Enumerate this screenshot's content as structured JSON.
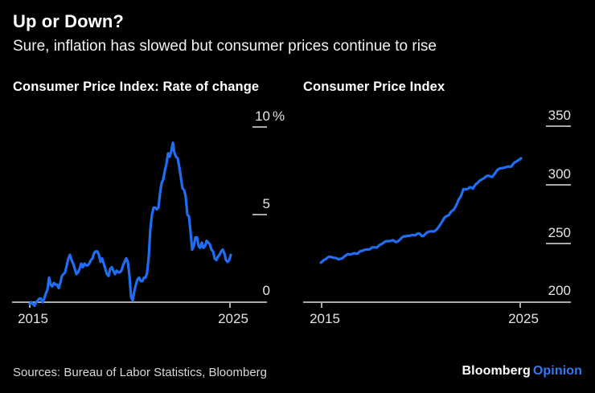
{
  "header": {
    "title": "Up or Down?",
    "subtitle": "Sure, inflation has slowed but consumer prices continue to rise"
  },
  "footer": {
    "sources": "Sources: Bureau of Labor Statistics, Bloomberg",
    "brand": "Bloomberg",
    "brand_suffix": "Opinion"
  },
  "colors": {
    "background": "#000000",
    "line": "#1f6df2",
    "axis": "#a9a9a9",
    "tick_label": "#e3e3e3",
    "title_text": "#ffffff",
    "sources_text": "#d9d9d9",
    "brand_blue": "#3579f3"
  },
  "chart_data": [
    {
      "type": "line",
      "title": "Consumer Price Index: Rate of change",
      "unit": "%",
      "x_monthly": {
        "start": "2015-01",
        "end": "2025-06"
      },
      "x_tick_labels": [
        "2015",
        "2025"
      ],
      "ylim": [
        0,
        10
      ],
      "yticks": [
        0,
        5,
        10
      ],
      "ytick_labels": [
        "0",
        "5",
        "10%"
      ],
      "grid": "right-dashes",
      "legend": "none",
      "line_color": "#1f6df2",
      "values": [
        -0.1,
        0.0,
        -0.1,
        -0.2,
        0.0,
        0.1,
        0.2,
        0.2,
        0.0,
        0.2,
        0.5,
        0.7,
        1.4,
        1.0,
        0.9,
        1.1,
        1.0,
        1.0,
        0.8,
        1.1,
        1.5,
        1.6,
        1.7,
        2.1,
        2.5,
        2.7,
        2.4,
        2.2,
        1.9,
        1.6,
        1.7,
        1.9,
        2.2,
        2.0,
        2.2,
        2.1,
        2.1,
        2.2,
        2.4,
        2.5,
        2.8,
        2.9,
        2.9,
        2.7,
        2.3,
        2.5,
        2.2,
        1.9,
        1.6,
        1.5,
        1.9,
        2.0,
        1.8,
        1.6,
        1.8,
        1.7,
        1.7,
        1.8,
        2.1,
        2.3,
        2.5,
        2.3,
        1.5,
        0.3,
        0.1,
        0.6,
        1.0,
        1.3,
        1.4,
        1.2,
        1.2,
        1.4,
        1.4,
        1.7,
        2.6,
        4.2,
        5.0,
        5.4,
        5.4,
        5.3,
        5.4,
        6.2,
        6.8,
        7.0,
        7.5,
        7.9,
        8.5,
        8.3,
        8.6,
        9.1,
        8.5,
        8.3,
        8.2,
        7.7,
        7.1,
        6.5,
        6.4,
        6.0,
        5.0,
        4.9,
        4.0,
        3.0,
        3.2,
        3.7,
        3.7,
        3.2,
        3.1,
        3.4,
        3.1,
        3.2,
        3.5,
        3.4,
        3.3,
        3.0,
        2.9,
        2.5,
        2.4,
        2.6,
        2.7,
        2.9,
        3.0,
        2.8,
        2.4,
        2.3,
        2.4,
        2.7
      ]
    },
    {
      "type": "line",
      "title": "Consumer Price Index",
      "unit": "index",
      "x_monthly": {
        "start": "2015-01",
        "end": "2025-06"
      },
      "x_tick_labels": [
        "2015",
        "2025"
      ],
      "ylim": [
        200,
        350
      ],
      "yticks": [
        200,
        250,
        300,
        350
      ],
      "ytick_labels": [
        "200",
        "250",
        "300",
        "350"
      ],
      "grid": "right-dashes",
      "legend": "none",
      "line_color": "#1f6df2",
      "values": [
        233.7,
        234.7,
        236.1,
        236.6,
        237.8,
        238.6,
        238.7,
        238.3,
        237.9,
        237.8,
        237.3,
        236.5,
        236.9,
        237.1,
        238.1,
        239.3,
        240.2,
        241.0,
        240.6,
        240.8,
        241.4,
        241.7,
        241.4,
        241.4,
        242.8,
        243.6,
        243.8,
        244.5,
        244.7,
        245.0,
        244.8,
        245.5,
        246.8,
        246.7,
        246.7,
        246.5,
        247.9,
        249.0,
        249.6,
        250.5,
        251.6,
        252.0,
        252.0,
        252.1,
        252.4,
        252.9,
        252.0,
        251.2,
        251.7,
        252.8,
        254.2,
        255.5,
        256.1,
        256.1,
        256.6,
        256.6,
        256.8,
        257.3,
        257.2,
        257.0,
        258.0,
        258.7,
        258.1,
        256.4,
        256.4,
        257.8,
        259.1,
        259.9,
        260.3,
        260.4,
        260.2,
        260.5,
        261.6,
        263.0,
        264.9,
        267.1,
        269.2,
        271.7,
        273.0,
        273.6,
        274.3,
        276.6,
        277.9,
        278.8,
        281.1,
        283.7,
        287.5,
        289.1,
        292.3,
        296.3,
        296.3,
        296.2,
        296.8,
        298.0,
        297.7,
        296.8,
        299.2,
        300.8,
        301.8,
        303.4,
        304.1,
        305.1,
        305.7,
        307.0,
        307.8,
        307.7,
        307.1,
        306.7,
        308.4,
        310.3,
        312.3,
        313.5,
        314.1,
        314.2,
        314.5,
        314.8,
        315.3,
        315.7,
        315.5,
        315.6,
        317.7,
        319.1,
        319.8,
        320.8,
        321.5,
        322.6
      ]
    }
  ]
}
